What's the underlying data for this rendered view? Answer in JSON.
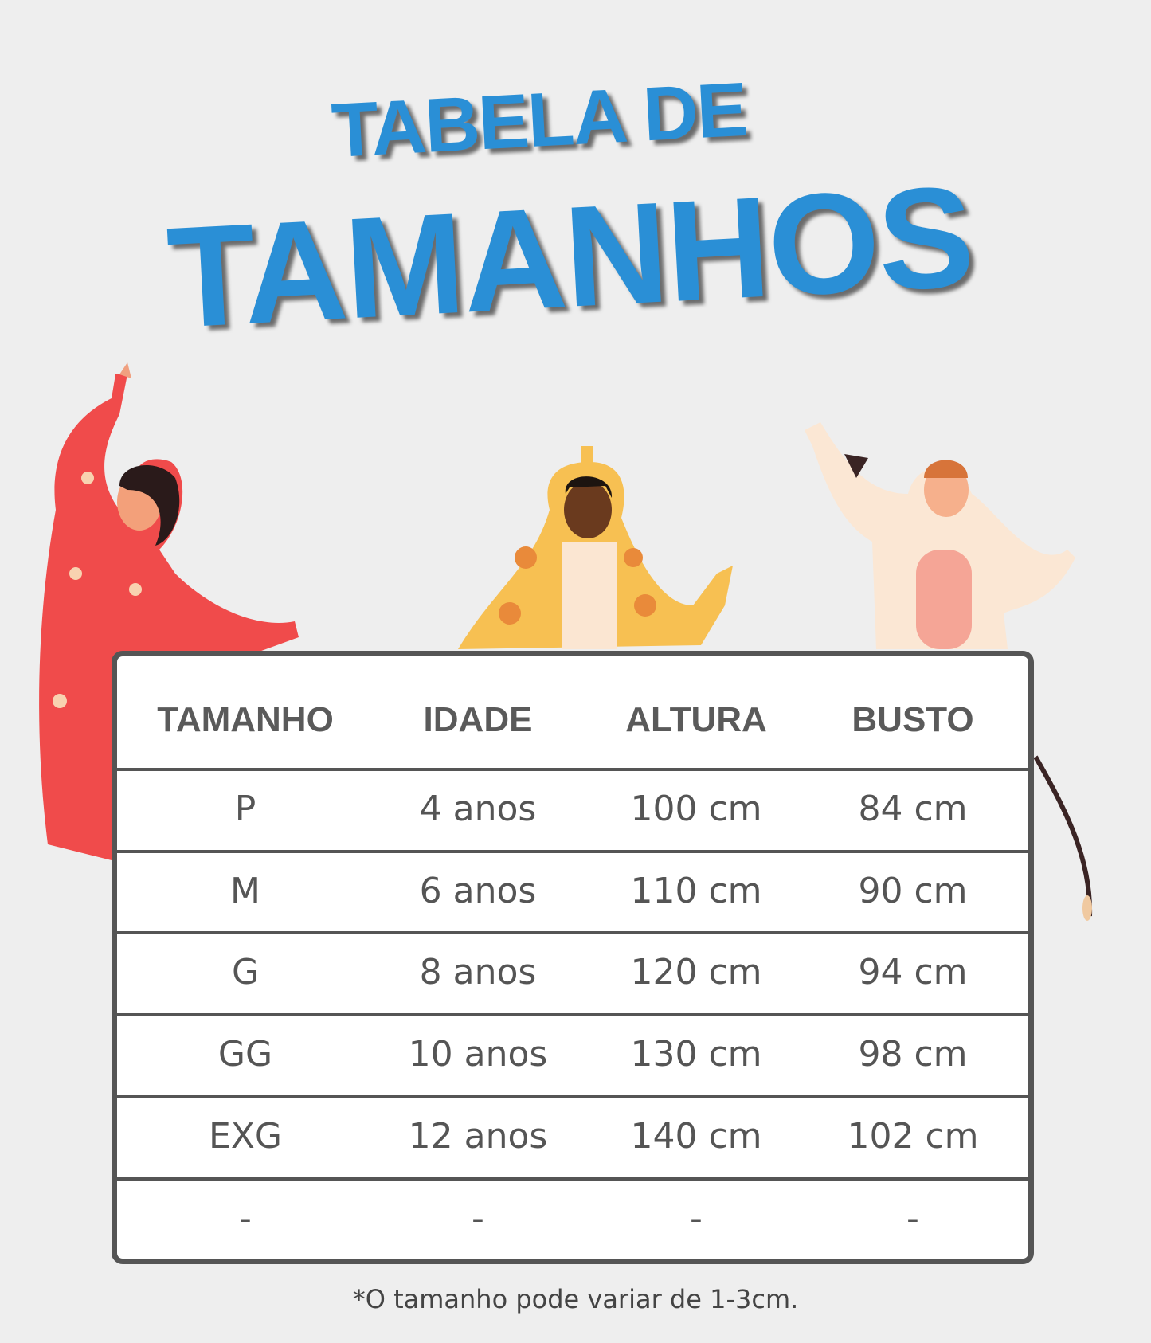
{
  "title": {
    "line1": "TABELA DE",
    "line2": "TAMANHOS",
    "color": "#2a8fd6"
  },
  "table": {
    "headers": [
      "TAMANHO",
      "IDADE",
      "ALTURA",
      "BUSTO"
    ],
    "rows": [
      [
        "P",
        "4 anos",
        "100 cm",
        "84 cm"
      ],
      [
        "M",
        "6 anos",
        "110 cm",
        "90 cm"
      ],
      [
        "G",
        "8 anos",
        "120 cm",
        "94 cm"
      ],
      [
        "GG",
        "10 anos",
        "130 cm",
        "98 cm"
      ],
      [
        "EXG",
        "12 anos",
        "140 cm",
        "102 cm"
      ],
      [
        "-",
        "-",
        "-",
        "-"
      ]
    ]
  },
  "footnote": "*O tamanho pode variar de 1-3cm.",
  "illustrations": [
    "woman-red-cat-onesie",
    "girl-giraffe-onesie",
    "boy-cow-onesie"
  ]
}
